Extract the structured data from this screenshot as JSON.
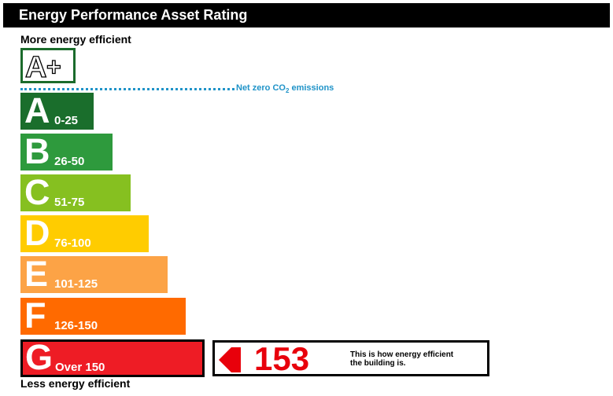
{
  "title": "Energy Performance Asset Rating",
  "top_label": "More energy efficient",
  "bottom_label": "Less energy efficient",
  "aplus": {
    "label": "A+"
  },
  "net_zero": {
    "text": "Net zero CO",
    "sub": "2",
    "tail": " emissions"
  },
  "bands": [
    {
      "letter": "A",
      "range": "0-25",
      "color": "#1a6e2c"
    },
    {
      "letter": "B",
      "range": "26-50",
      "color": "#2e9a3d"
    },
    {
      "letter": "C",
      "range": "51-75",
      "color": "#86c020"
    },
    {
      "letter": "D",
      "range": "76-100",
      "color": "#ffcc00"
    },
    {
      "letter": "E",
      "range": "101-125",
      "color": "#fca346"
    },
    {
      "letter": "F",
      "range": "126-150",
      "color": "#ff6a00"
    },
    {
      "letter": "G",
      "range": "Over 150",
      "color": "#ee1c25"
    }
  ],
  "rating": {
    "value": "153",
    "description_line1": "This is how energy efficient",
    "description_line2": "the building is.",
    "color": "#e8000b"
  }
}
